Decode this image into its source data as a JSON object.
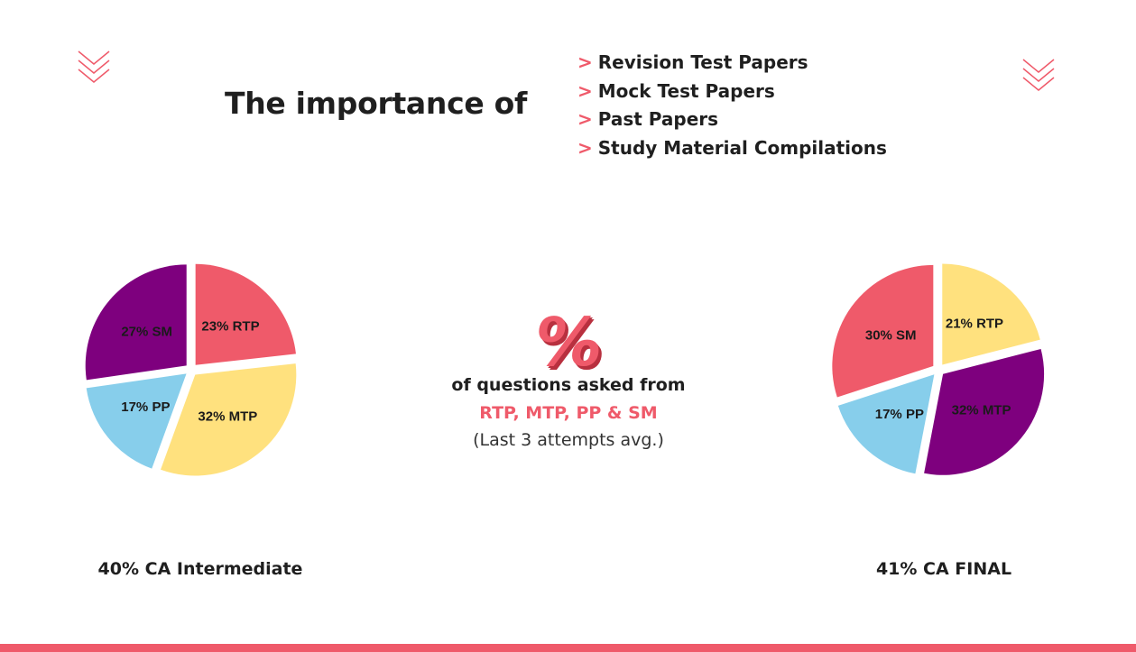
{
  "header": {
    "title": "The importance of",
    "list": [
      {
        "marker": ">",
        "label": "Revision Test Papers"
      },
      {
        "marker": ">",
        "label": "Mock Test Papers"
      },
      {
        "marker": ">",
        "label": "Past Papers"
      },
      {
        "marker": ">",
        "label": "Study Material Compilations"
      }
    ]
  },
  "center": {
    "symbol": "%",
    "line1": "of questions asked from",
    "line2": "RTP, MTP, PP & SM",
    "line3": "(Last 3 attempts avg.)"
  },
  "colors": {
    "accent": "#ef5a6a",
    "purple": "#7e007e",
    "yellow": "#ffe17e",
    "blue": "#87ceeb",
    "text": "#1f1f1f"
  },
  "chart_data": [
    {
      "type": "pie",
      "caption": "40% CA Intermediate",
      "slices": [
        {
          "label": "23% RTP",
          "value": 23,
          "color": "#ef5a6a"
        },
        {
          "label": "32% MTP",
          "value": 32,
          "color": "#ffe17e"
        },
        {
          "label": "17% PP",
          "value": 17,
          "color": "#87ceeb"
        },
        {
          "label": "27% SM",
          "value": 27,
          "color": "#7e007e"
        }
      ]
    },
    {
      "type": "pie",
      "caption": "41% CA FINAL",
      "slices": [
        {
          "label": "21% RTP",
          "value": 21,
          "color": "#ffe17e"
        },
        {
          "label": "32% MTP",
          "value": 32,
          "color": "#7e007e"
        },
        {
          "label": "17% PP",
          "value": 17,
          "color": "#87ceeb"
        },
        {
          "label": "30% SM",
          "value": 30,
          "color": "#ef5a6a"
        }
      ]
    }
  ]
}
